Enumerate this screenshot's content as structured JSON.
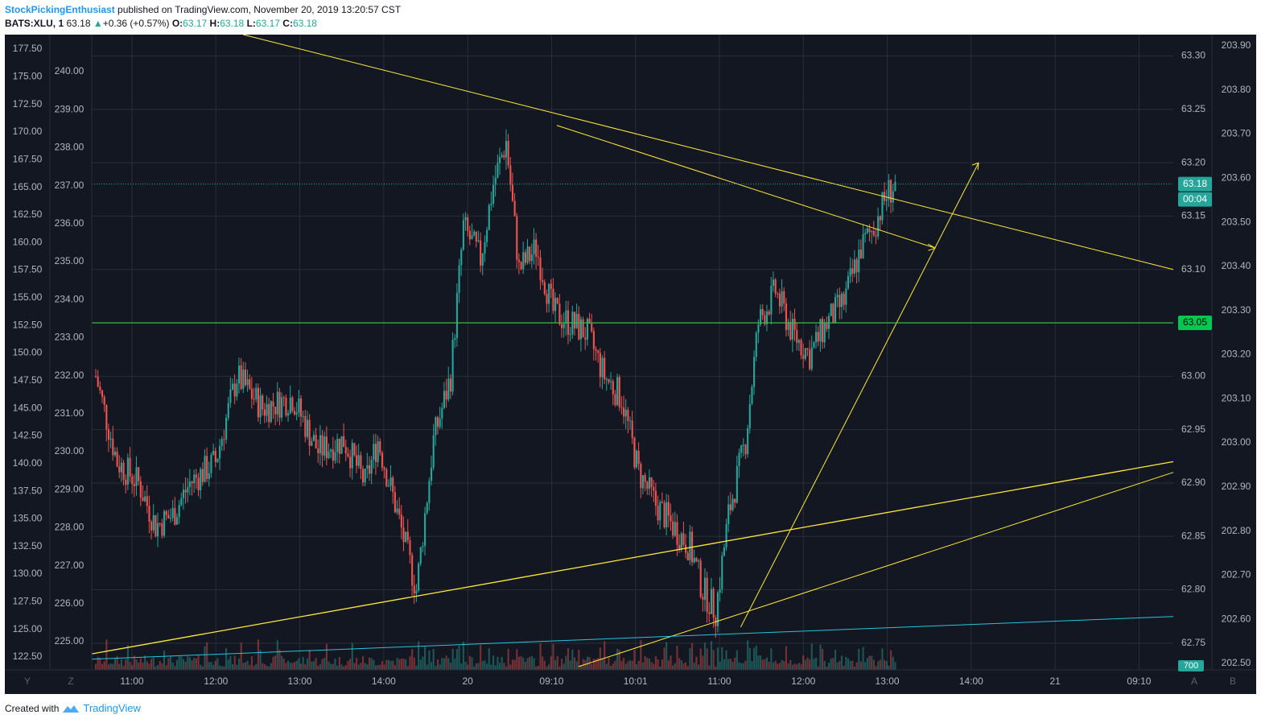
{
  "header": {
    "author": "StockPickingEnthusiast",
    "published": "published on TradingView.com, November 20, 2019 13:20:57 CST",
    "symbol": "BATS:XLU, 1",
    "last": "63.18",
    "change": "+0.36 (+0.57%)",
    "o_label": "O:",
    "o": "63.17",
    "h_label": "H:",
    "h": "63.18",
    "l_label": "L:",
    "l": "63.17",
    "c_label": "C:",
    "c": "63.18"
  },
  "footer": {
    "created": "Created with",
    "brand": "TradingView"
  },
  "chart_data": {
    "type": "candlestick",
    "symbol": "BATS:XLU",
    "interval": "1",
    "price_axis_primary": {
      "side": "right",
      "ticks": [
        "63.30",
        "63.25",
        "63.20",
        "63.15",
        "63.10",
        "63.05",
        "63.00",
        "62.95",
        "62.90",
        "62.85",
        "62.80",
        "62.75"
      ],
      "range": [
        62.725,
        63.32
      ]
    },
    "price_axis_secondary": {
      "side": "right-outer",
      "ticks": [
        "203.90",
        "203.80",
        "203.70",
        "203.60",
        "203.50",
        "203.40",
        "203.30",
        "203.20",
        "203.10",
        "203.00",
        "202.90",
        "202.80",
        "202.70",
        "202.60",
        "202.50"
      ]
    },
    "overlay_axis_1": {
      "side": "left-outer",
      "ticks": [
        "177.50",
        "175.00",
        "172.50",
        "170.00",
        "167.50",
        "165.00",
        "162.50",
        "160.00",
        "157.50",
        "155.00",
        "152.50",
        "150.00",
        "147.50",
        "145.00",
        "142.50",
        "140.00",
        "137.50",
        "135.00",
        "132.50",
        "130.00",
        "127.50",
        "125.00",
        "122.50"
      ]
    },
    "overlay_axis_2": {
      "side": "left-inner",
      "ticks": [
        "240.00",
        "239.00",
        "238.00",
        "237.00",
        "236.00",
        "235.00",
        "234.00",
        "233.00",
        "232.00",
        "231.00",
        "230.00",
        "229.00",
        "228.00",
        "227.00",
        "226.00",
        "225.00"
      ]
    },
    "time_ticks": [
      "11:00",
      "12:00",
      "13:00",
      "14:00",
      "20",
      "09:10",
      "10:01",
      "11:00",
      "12:00",
      "13:00",
      "14:00",
      "21",
      "09:10"
    ],
    "price_label": "63.18",
    "countdown": "00:04",
    "horizontal_line_label": "63.05",
    "volume_label": "700",
    "scale_buttons": [
      "Y",
      "Z",
      "A",
      "B"
    ],
    "key_prices": {
      "high": 63.245,
      "low": 62.765,
      "last": 63.18,
      "support": 63.05
    },
    "grid": true,
    "colors": {
      "background": "#131722",
      "up": "#26a69a",
      "down": "#ef5350",
      "trendline": "#ffeb3b",
      "hline": "#4caf50",
      "cyan_line": "#26c6da"
    }
  }
}
